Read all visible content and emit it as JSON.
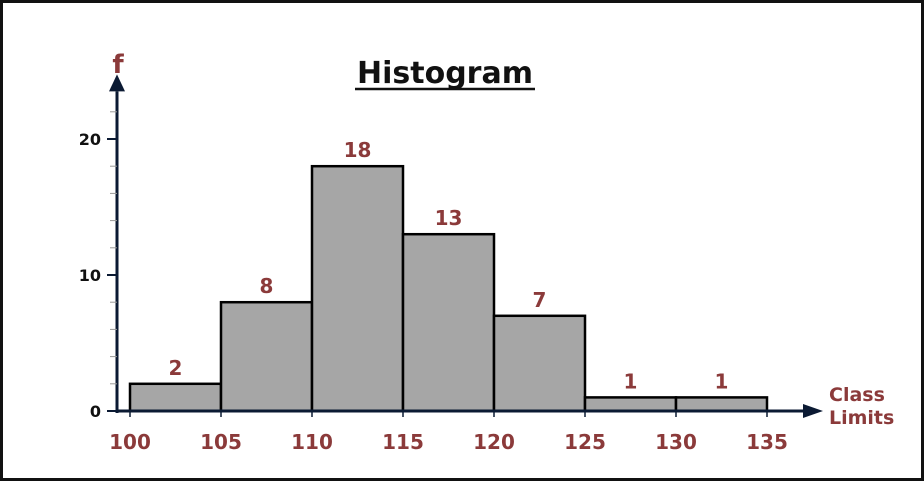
{
  "chart_data": {
    "type": "bar",
    "title": "Histogram",
    "ylabel": "f",
    "xlabel": "Class\nLimits",
    "ylim": [
      0,
      20
    ],
    "yticks": [
      0,
      10,
      20
    ],
    "bin_edges": [
      100,
      105,
      110,
      115,
      120,
      125,
      130,
      135
    ],
    "values": [
      2,
      8,
      18,
      13,
      7,
      1,
      1
    ],
    "grid": false,
    "legend": "none"
  },
  "colors": {
    "bar_fill": "#a6a6a6",
    "bar_stroke": "#000000",
    "label_color": "#8b3a3a",
    "axis_color": "#0b1a33"
  }
}
